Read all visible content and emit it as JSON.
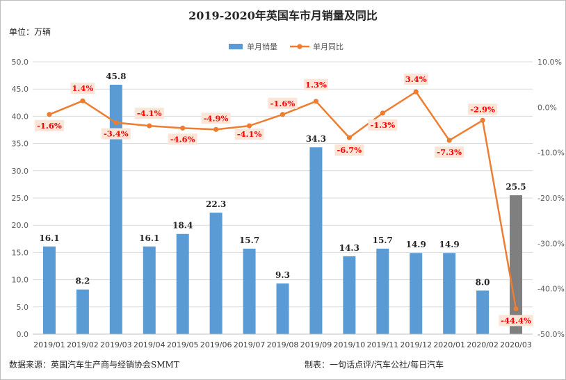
{
  "chart_data": {
    "type": "bar+line",
    "title": "2019-2020年英国车市月销量及同比",
    "unit_label": "单位：万辆",
    "categories": [
      "2019/01",
      "2019/02",
      "2019/03",
      "2019/04",
      "2019/05",
      "2019/06",
      "2019/07",
      "2019/08",
      "2019/09",
      "2019/10",
      "2019/11",
      "2019/12",
      "2020/01",
      "2020/02",
      "2020/03"
    ],
    "series": [
      {
        "name": "单月销量",
        "kind": "bar",
        "axis": "left",
        "color": "#5B9BD5",
        "highlight_color": "#7F7F7F",
        "highlight_index": 14,
        "values": [
          16.1,
          8.2,
          45.8,
          16.1,
          18.4,
          22.3,
          15.7,
          9.3,
          34.3,
          14.3,
          15.7,
          14.9,
          14.9,
          8.0,
          25.5
        ],
        "labels": [
          "16.1",
          "8.2",
          "45.8",
          "16.1",
          "18.4",
          "22.3",
          "15.7",
          "9.3",
          "34.3",
          "14.3",
          "15.7",
          "14.9",
          "14.9",
          "8.0",
          "25.5"
        ]
      },
      {
        "name": "单月同比",
        "kind": "line",
        "axis": "right",
        "color": "#ED7D31",
        "values": [
          -1.6,
          1.4,
          -3.4,
          -4.1,
          -4.6,
          -4.9,
          -4.1,
          -1.6,
          1.3,
          -6.7,
          -1.3,
          3.4,
          -7.3,
          -2.9,
          -44.4
        ],
        "labels": [
          "-1.6%",
          "1.4%",
          "-3.4%",
          "-4.1%",
          "-4.6%",
          "-4.9%",
          "-4.1%",
          "-1.6%",
          "1.3%",
          "-6.7%",
          "-1.3%",
          "3.4%",
          "-7.3%",
          "-2.9%",
          "-44.4%"
        ]
      }
    ],
    "y_left": {
      "min": 0,
      "max": 50,
      "step": 5,
      "ticks": [
        "0.0",
        "5.0",
        "10.0",
        "15.0",
        "20.0",
        "25.0",
        "30.0",
        "35.0",
        "40.0",
        "45.0",
        "50.0"
      ]
    },
    "y_right": {
      "min": -50,
      "max": 10,
      "step": 10,
      "ticks": [
        "-50.0%",
        "-40.0%",
        "-30.0%",
        "-20.0%",
        "-10.0%",
        "0.0%",
        "10.0%"
      ]
    },
    "grid": true,
    "legend_position": "top-center",
    "label_box_color": "#FCE4D6",
    "label_text_color": "#FF0000"
  },
  "footer": {
    "source": "数据来源：英国汽车生产商与经销协会SMMT",
    "maker": "制表：一句话点评/汽车公社/每日汽车"
  }
}
